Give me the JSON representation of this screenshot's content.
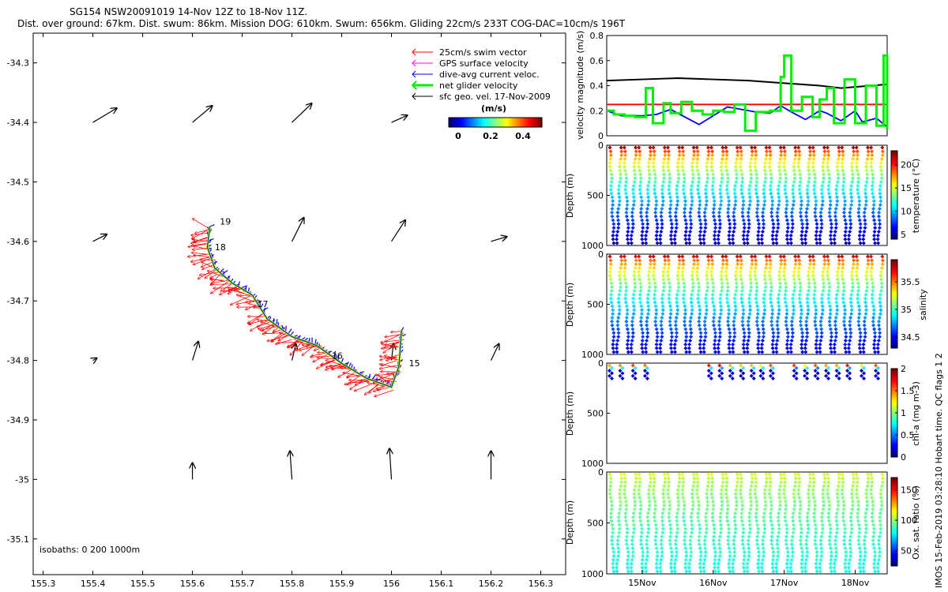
{
  "title": {
    "line1": "SG154 NSW20091019 14-Nov 12Z to 18-Nov 11Z.",
    "line2": "Dist. over ground: 67km. Dist. swum: 86km. Mission DOG: 610km. Swum: 656km. Gliding 22cm/s 233T COG-DAC=10cm/s 196T"
  },
  "colors": {
    "swim": "#ff0000",
    "gps": "#ff00ff",
    "dac": "#0000ff",
    "net": "#00ee00",
    "geo": "#000000",
    "track": "#e6e600"
  },
  "chart_data": [
    {
      "type": "map",
      "name": "track-map",
      "xlim": [
        155.28,
        156.35
      ],
      "ylim": [
        -35.16,
        -34.25
      ],
      "xticks": [
        "155.3",
        "155.4",
        "155.5",
        "155.6",
        "155.7",
        "155.8",
        "155.9",
        "156",
        "156.1",
        "156.2",
        "156.3"
      ],
      "yticks": [
        "-34.3",
        "-34.4",
        "-34.5",
        "-34.6",
        "-34.7",
        "-34.8",
        "-34.9",
        "-35",
        "-35.1"
      ],
      "legend": [
        {
          "label": "25cm/s swim vector",
          "color": "#ff0000"
        },
        {
          "label": "GPS surface velocity",
          "color": "#ff00ff"
        },
        {
          "label": "dive-avg current veloc.",
          "color": "#0000ff"
        },
        {
          "label": "net glider velocity",
          "color": "#00ee00"
        },
        {
          "label": "sfc geo. vel. 17-Nov-2009",
          "color": "#000000"
        }
      ],
      "colorbar": {
        "label": "(m/s)",
        "ticks": [
          "0",
          "0.2",
          "0.4"
        ],
        "range": [
          0,
          0.5
        ]
      },
      "isobaths_label": "isobaths: 0   200  1000m",
      "track": [
        [
          155.635,
          -34.575
        ],
        [
          155.63,
          -34.61
        ],
        [
          155.645,
          -34.645
        ],
        [
          155.68,
          -34.67
        ],
        [
          155.72,
          -34.69
        ],
        [
          155.75,
          -34.73
        ],
        [
          155.8,
          -34.76
        ],
        [
          155.85,
          -34.775
        ],
        [
          155.9,
          -34.805
        ],
        [
          155.95,
          -34.83
        ],
        [
          156.0,
          -34.845
        ],
        [
          156.015,
          -34.81
        ],
        [
          156.02,
          -34.75
        ]
      ],
      "day_labels": [
        {
          "text": "19",
          "lon": 155.655,
          "lat": -34.572
        },
        {
          "text": "18",
          "lon": 155.645,
          "lat": -34.615
        },
        {
          "text": "17",
          "lon": 155.73,
          "lat": -34.71
        },
        {
          "text": "16",
          "lon": 155.88,
          "lat": -34.797
        },
        {
          "text": "15",
          "lon": 156.035,
          "lat": -34.81
        }
      ],
      "geo_vectors": [
        [
          155.4,
          -34.4,
          0.12,
          0.06
        ],
        [
          155.6,
          -34.4,
          0.1,
          0.07
        ],
        [
          155.8,
          -34.4,
          0.1,
          0.08
        ],
        [
          156.0,
          -34.4,
          0.08,
          0.03
        ],
        [
          155.4,
          -34.6,
          0.07,
          0.03
        ],
        [
          155.8,
          -34.6,
          0.06,
          0.1
        ],
        [
          156.0,
          -34.6,
          0.07,
          0.09
        ],
        [
          156.2,
          -34.6,
          0.08,
          0.02
        ],
        [
          155.4,
          -34.8,
          0.02,
          0.01
        ],
        [
          155.6,
          -34.8,
          0.03,
          0.08
        ],
        [
          155.8,
          -34.8,
          0.02,
          0.07
        ],
        [
          156.0,
          -34.8,
          0.01,
          0.07
        ],
        [
          156.2,
          -34.8,
          0.04,
          0.07
        ],
        [
          155.6,
          -35.0,
          0.0,
          0.07
        ],
        [
          155.8,
          -35.0,
          -0.01,
          0.12
        ],
        [
          156.0,
          -35.0,
          -0.01,
          0.13
        ],
        [
          156.2,
          -35.0,
          0.0,
          0.12
        ]
      ]
    },
    {
      "type": "line",
      "name": "velocity-panel",
      "ylabel": "velocity magnitude (m/s)",
      "ylim": [
        0,
        0.8
      ],
      "yticks": [
        "0",
        "0.2",
        "0.4",
        "0.6",
        "0.8"
      ],
      "xlim": [
        14.5,
        18.45
      ],
      "series": [
        {
          "name": "black",
          "color": "#000000",
          "x": [
            14.5,
            15.0,
            15.5,
            16.0,
            16.5,
            17.0,
            17.5,
            17.8,
            18.0,
            18.45
          ],
          "values": [
            0.44,
            0.45,
            0.46,
            0.45,
            0.44,
            0.42,
            0.4,
            0.38,
            0.39,
            0.41
          ]
        },
        {
          "name": "red",
          "color": "#ff0000",
          "x": [
            14.5,
            18.45
          ],
          "values": [
            0.25,
            0.25
          ]
        },
        {
          "name": "dac",
          "color": "#0000ff",
          "x": [
            14.5,
            14.7,
            15.0,
            15.2,
            15.4,
            15.6,
            15.8,
            16.0,
            16.2,
            16.4,
            16.6,
            16.8,
            16.95,
            17.1,
            17.3,
            17.5,
            17.6,
            17.8,
            18.0,
            18.1,
            18.3,
            18.45
          ],
          "values": [
            0.2,
            0.16,
            0.16,
            0.17,
            0.21,
            0.15,
            0.09,
            0.16,
            0.23,
            0.21,
            0.19,
            0.18,
            0.24,
            0.19,
            0.13,
            0.2,
            0.18,
            0.12,
            0.2,
            0.11,
            0.14,
            0.07
          ]
        },
        {
          "name": "net",
          "color": "#00ee00",
          "x": [
            14.5,
            14.6,
            14.75,
            14.9,
            15.05,
            15.15,
            15.3,
            15.4,
            15.55,
            15.7,
            15.85,
            16.0,
            16.15,
            16.3,
            16.45,
            16.6,
            16.8,
            16.95,
            17.0,
            17.1,
            17.25,
            17.4,
            17.5,
            17.6,
            17.7,
            17.85,
            18.0,
            18.15,
            18.3,
            18.4,
            18.45
          ],
          "values": [
            0.2,
            0.17,
            0.16,
            0.15,
            0.38,
            0.1,
            0.26,
            0.18,
            0.27,
            0.2,
            0.17,
            0.2,
            0.19,
            0.25,
            0.04,
            0.19,
            0.2,
            0.47,
            0.64,
            0.2,
            0.31,
            0.15,
            0.29,
            0.38,
            0.1,
            0.45,
            0.1,
            0.4,
            0.08,
            0.64,
            0.05
          ]
        }
      ]
    },
    {
      "type": "scatter-section",
      "name": "temperature-panel",
      "ylabel": "Depth (m)",
      "yticks": [
        "0",
        "500",
        "1000"
      ],
      "clabel": "temperature (°C)",
      "cticks": [
        "5",
        "10",
        "15",
        "20"
      ],
      "crange": [
        4,
        23
      ],
      "dives": 38,
      "max_depth": 1000,
      "surface_value": 22,
      "bottom_value": 5
    },
    {
      "type": "scatter-section",
      "name": "salinity-panel",
      "ylabel": "Depth (m)",
      "yticks": [
        "0",
        "500",
        "1000"
      ],
      "clabel": "salinity",
      "cticks": [
        "34.5",
        "35",
        "35.5"
      ],
      "crange": [
        34.3,
        35.9
      ],
      "dives": 38,
      "max_depth": 1000,
      "surface_value": 35.75,
      "bottom_value": 34.45
    },
    {
      "type": "scatter-section",
      "name": "chla-panel",
      "ylabel": "Depth (m)",
      "yticks": [
        "0",
        "500",
        "1000"
      ],
      "clabel": "chl-a (mg m-3)",
      "cticks": [
        "0",
        "0.5",
        "1",
        "1.5",
        "2"
      ],
      "crange": [
        0,
        2
      ],
      "dive_times": [
        14.55,
        14.7,
        14.88,
        15.05,
        15.95,
        16.1,
        16.25,
        16.4,
        16.55,
        16.68,
        16.82,
        17.15,
        17.3,
        17.45,
        17.6,
        17.75,
        17.9,
        18.1,
        18.3
      ],
      "max_depth": 130
    },
    {
      "type": "scatter-section",
      "name": "oxygen-panel",
      "ylabel": "Depth (m)",
      "yticks": [
        "0",
        "500",
        "1000"
      ],
      "clabel": "Ox. sat. ratio (%)",
      "cticks": [
        "50",
        "100",
        "150"
      ],
      "crange": [
        25,
        170
      ],
      "dives": 38,
      "max_depth": 1000,
      "surface_value": 112,
      "bottom_value": 82
    }
  ],
  "xaxis_dates": {
    "labels": [
      "15Nov",
      "16Nov",
      "17Nov",
      "18Nov"
    ],
    "positions": [
      15,
      16,
      17,
      18
    ],
    "xlim": [
      14.5,
      18.45
    ]
  },
  "footer": "IMOS 15-Feb-2019 03:28:10 Hobart time. QC flags 1  2"
}
